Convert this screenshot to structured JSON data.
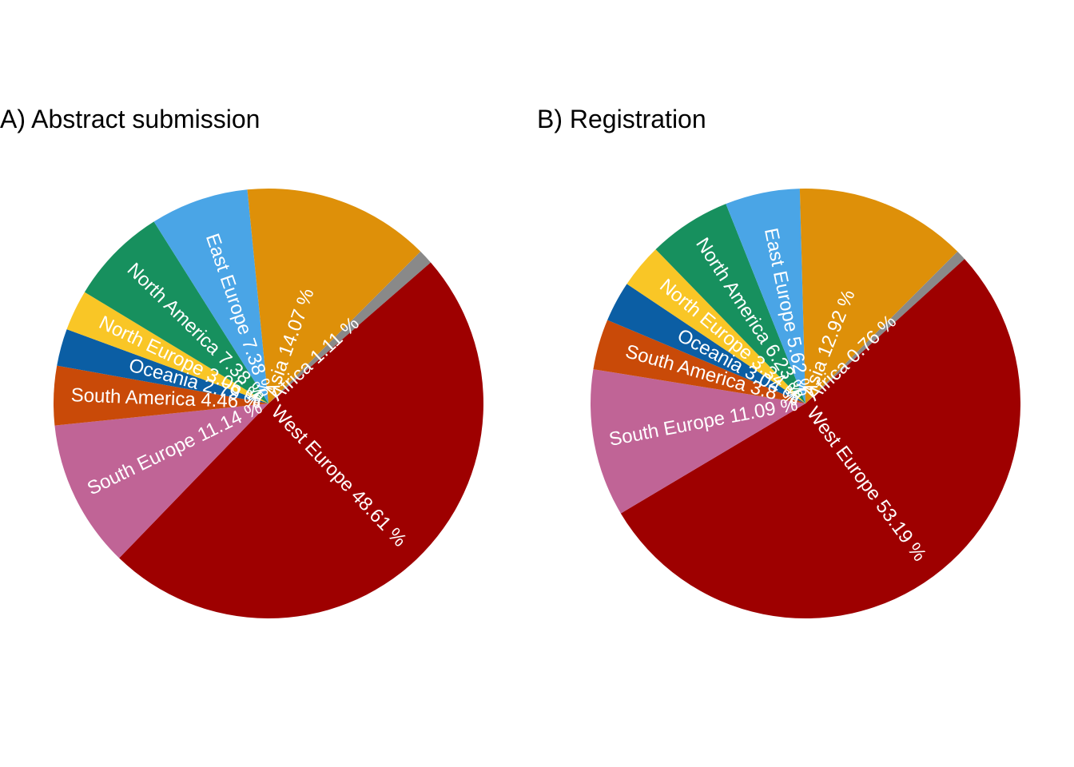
{
  "chart_data": [
    {
      "type": "pie",
      "title": "A) Abstract submission",
      "slices": [
        {
          "label": "Africa",
          "value": 1.11,
          "text": "Africa 1.11 %",
          "color": "#898989"
        },
        {
          "label": "West Europe",
          "value": 48.61,
          "text": "West Europe 48.61 %",
          "color": "#9E0000"
        },
        {
          "label": "South Europe",
          "value": 11.14,
          "text": "South Europe 11.14 %",
          "color": "#C06496"
        },
        {
          "label": "South America",
          "value": 4.46,
          "text": "South America 4.46 %",
          "color": "#C94A08"
        },
        {
          "label": "Oceania",
          "value": 2.79,
          "text": "Oceania 2.79 %",
          "color": "#0B5EA4"
        },
        {
          "label": "North Europe",
          "value": 3.06,
          "text": "North Europe 3.06 %",
          "color": "#F9C626"
        },
        {
          "label": "North America",
          "value": 7.38,
          "text": "North America 7.38 %",
          "color": "#17905E"
        },
        {
          "label": "East Europe",
          "value": 7.38,
          "text": "East Europe 7.38 %",
          "color": "#4AA5E6"
        },
        {
          "label": "Asia",
          "value": 14.07,
          "text": "Asia 14.07 %",
          "color": "#DE9009"
        }
      ]
    },
    {
      "type": "pie",
      "title": "B) Registration",
      "slices": [
        {
          "label": "Africa",
          "value": 0.76,
          "text": "Africa 0.76 %",
          "color": "#898989"
        },
        {
          "label": "West Europe",
          "value": 53.19,
          "text": "West Europe 53.19 %",
          "color": "#9E0000"
        },
        {
          "label": "South Europe",
          "value": 11.09,
          "text": "South Europe 11.09 %",
          "color": "#C06496"
        },
        {
          "label": "South America",
          "value": 3.8,
          "text": "South America 3.8 %",
          "color": "#C94A08"
        },
        {
          "label": "Oceania",
          "value": 3.04,
          "text": "Oceania 3.04 %",
          "color": "#0B5EA4"
        },
        {
          "label": "North Europe",
          "value": 3.34,
          "text": "North Europe 3.34 %",
          "color": "#F9C626"
        },
        {
          "label": "North America",
          "value": 6.23,
          "text": "North America 6.23 %",
          "color": "#17905E"
        },
        {
          "label": "East Europe",
          "value": 5.62,
          "text": "East Europe 5.62 %",
          "color": "#4AA5E6"
        },
        {
          "label": "Asia",
          "value": 12.92,
          "text": "Asia 12.92 %",
          "color": "#DE9009"
        }
      ]
    }
  ]
}
